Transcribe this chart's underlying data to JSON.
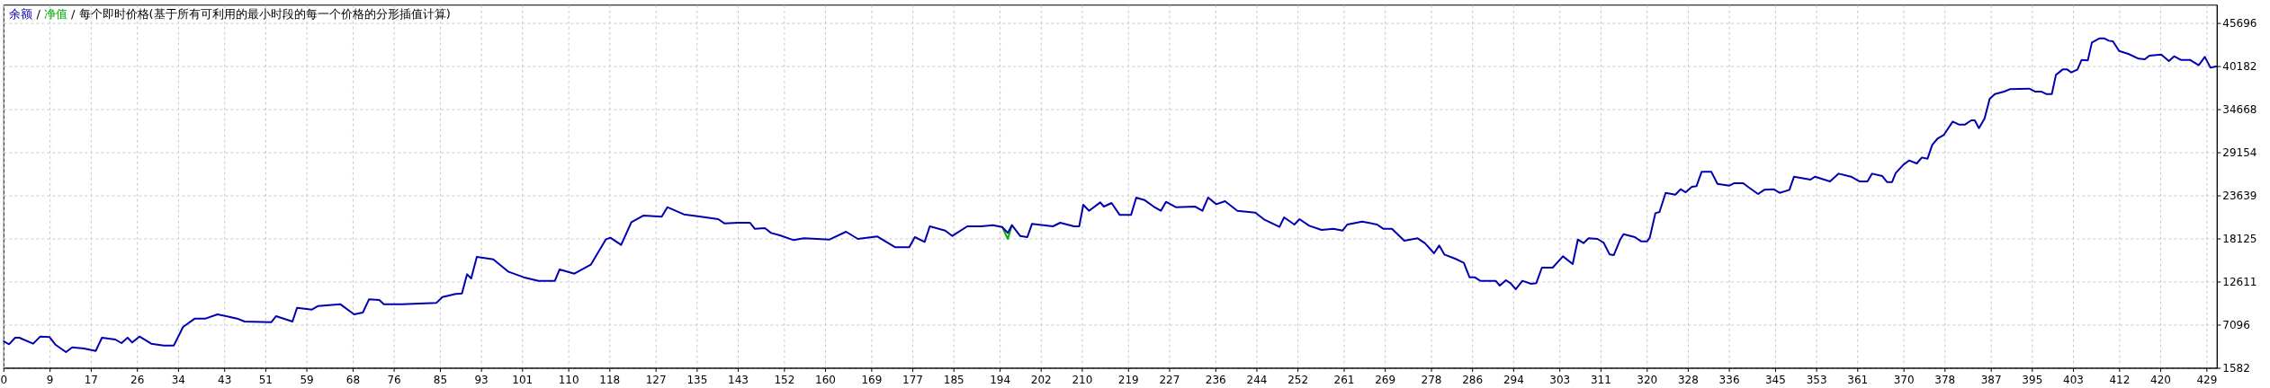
{
  "chart_data": {
    "type": "line",
    "title": "每个即时价格(基于所有可利用的最小时段的每一个价格的分形插值计算)",
    "legend": "top left",
    "grid": true,
    "line_style": "solid",
    "xlim": [
      0,
      431
    ],
    "ylim": [
      1582,
      48040
    ],
    "xticks": [
      0,
      9,
      17,
      26,
      34,
      43,
      51,
      59,
      68,
      76,
      85,
      93,
      101,
      110,
      118,
      127,
      135,
      143,
      152,
      160,
      169,
      177,
      185,
      194,
      202,
      210,
      219,
      227,
      236,
      244,
      252,
      261,
      269,
      278,
      286,
      294,
      303,
      311,
      320,
      328,
      336,
      345,
      353,
      361,
      370,
      378,
      387,
      395,
      403,
      412,
      420,
      429
    ],
    "annotations": [
      "/",
      "/"
    ],
    "yticks": [
      1582,
      7096,
      12611,
      18125,
      23639,
      29154,
      34668,
      40182,
      45696
    ],
    "series": [
      {
        "name": "净值",
        "color": "#00b000",
        "x": [
          194.4,
          195.5,
          196.3
        ],
        "values": [
          19660,
          18128,
          19889
        ]
      },
      {
        "name": "余额",
        "color": "#0000b0",
        "x": [
          0,
          1.0,
          2.2,
          3.0,
          5.7,
          7.1,
          8.9,
          10.1,
          12.1,
          13.3,
          15.6,
          17.9,
          19.1,
          21.7,
          22.9,
          24.1,
          25.0,
          26.4,
          28.7,
          31.1,
          33.1,
          34.9,
          37.2,
          39.3,
          41.6,
          45.4,
          46.9,
          52.1,
          53.0,
          56.2,
          57.1,
          60.0,
          61.2,
          65.5,
          68.2,
          69.9,
          71.1,
          73.1,
          74.0,
          77.5,
          84.2,
          85.4,
          88.0,
          89.2,
          90.2,
          91.0,
          92.1,
          95.3,
          98.3,
          101.2,
          104.1,
          107.3,
          108.2,
          111.1,
          114.3,
          117.2,
          118.1,
          120.2,
          122.2,
          124.5,
          128.1,
          129.2,
          132.4,
          135.1,
          139.1,
          140.3,
          143.0,
          145.3,
          146.2,
          148.2,
          149.4,
          151.1,
          153.8,
          155.8,
          160.8,
          164.0,
          166.3,
          170.1,
          173.6,
          176.3,
          177.4,
          179.3,
          180.3,
          183.3,
          184.7,
          187.6,
          190.3,
          192.6,
          194.4,
          195.5,
          196.3,
          197.9,
          199.3,
          200.2,
          204.3,
          205.7,
          208.4,
          209.4,
          210.2,
          211.3,
          213.5,
          214.2,
          215.7,
          217.3,
          219.5,
          220.5,
          222.1,
          223.9,
          225.3,
          226.3,
          228.2,
          232.0,
          233.4,
          234.5,
          236.1,
          237.8,
          240.2,
          243.7,
          245.5,
          248.4,
          249.3,
          251.3,
          252.3,
          254.2,
          256.6,
          258.9,
          260.7,
          261.6,
          264.5,
          267.4,
          268.6,
          270.3,
          272.7,
          275.3,
          276.7,
          278.5,
          279.5,
          280.5,
          282.6,
          284.3,
          285.4,
          286.4,
          287.5,
          290.5,
          291.3,
          292.5,
          293.4,
          294.4,
          295.7,
          297.4,
          298.4,
          299.5,
          301.6,
          303.6,
          305.5,
          306.5,
          307.6,
          308.6,
          310.3,
          311.5,
          312.7,
          313.5,
          314.7,
          315.4,
          317.6,
          318.8,
          320.0,
          320.5,
          321.6,
          322.4,
          323.6,
          325.5,
          326.5,
          327.5,
          328.7,
          329.6,
          330.6,
          332.5,
          333.7,
          336.0,
          336.9,
          338.7,
          339.8,
          341.6,
          342.8,
          344.6,
          345.8,
          347.7,
          348.6,
          351.8,
          352.7,
          355.6,
          357.3,
          359.7,
          361.4,
          362.9,
          363.8,
          365.8,
          366.7,
          367.7,
          368.4,
          369.9,
          371.0,
          372.5,
          373.5,
          374.6,
          375.5,
          376.6,
          377.8,
          379.5,
          380.7,
          381.9,
          383.1,
          383.8,
          384.6,
          385.7,
          386.7,
          387.7,
          389.5,
          390.6,
          394.4,
          395.6,
          396.8,
          397.7,
          398.8,
          399.6,
          400.9,
          401.8,
          402.6,
          403.8,
          404.6,
          405.8,
          406.6,
          408.1,
          409.0,
          409.9,
          410.7,
          411.9,
          413.7,
          415.7,
          416.9,
          417.8,
          420.1,
          421.6,
          422.6,
          423.9,
          425.7,
          427.4,
          428.6,
          429.7,
          430.8
        ],
        "values": [
          5029,
          4646,
          5489,
          5489,
          4723,
          5642,
          5565,
          4569,
          3650,
          4263,
          4110,
          3803,
          5489,
          5259,
          4799,
          5489,
          4876,
          5642,
          4723,
          4493,
          4493,
          6867,
          7940,
          7940,
          8476,
          7940,
          7557,
          7480,
          8246,
          7557,
          9319,
          9089,
          9548,
          9778,
          8476,
          8706,
          10391,
          10314,
          9778,
          9778,
          9931,
          10697,
          11080,
          11157,
          13608,
          13072,
          15830,
          15523,
          13915,
          13225,
          12766,
          12766,
          14221,
          13685,
          14834,
          18051,
          18281,
          17362,
          20273,
          21115,
          20962,
          22188,
          21268,
          21038,
          20655,
          20119,
          20196,
          20196,
          19430,
          19507,
          18894,
          18588,
          17975,
          18204,
          18051,
          19047,
          18128,
          18434,
          17055,
          17055,
          18357,
          17745,
          19737,
          19200,
          18511,
          19737,
          19737,
          19889,
          19660,
          18894,
          19889,
          18511,
          18357,
          20043,
          19737,
          20196,
          19737,
          19737,
          22494,
          21728,
          22800,
          22264,
          22724,
          21192,
          21192,
          23413,
          23107,
          22264,
          21728,
          22877,
          22188,
          22264,
          21728,
          23413,
          22570,
          22953,
          21728,
          21498,
          20579,
          19660,
          20885,
          19966,
          20655,
          19813,
          19277,
          19430,
          19200,
          19966,
          20349,
          19966,
          19430,
          19430,
          17898,
          18204,
          17591,
          16289,
          17285,
          16136,
          15600,
          15063,
          13225,
          13225,
          12766,
          12766,
          12153,
          12843,
          12460,
          11693,
          12766,
          12383,
          12460,
          14451,
          14451,
          15906,
          14910,
          18051,
          17591,
          18204,
          18128,
          17668,
          16136,
          16059,
          17975,
          18741,
          18357,
          17821,
          17821,
          18281,
          21421,
          21574,
          24025,
          23795,
          24485,
          24102,
          24791,
          24868,
          26707,
          26707,
          25175,
          24945,
          25251,
          25251,
          24715,
          23872,
          24408,
          24485,
          24025,
          24408,
          26094,
          25711,
          26094,
          25481,
          26477,
          26094,
          25481,
          25481,
          26477,
          26171,
          25405,
          25405,
          26554,
          27627,
          28162,
          27779,
          28545,
          28392,
          30154,
          30996,
          31456,
          33141,
          32758,
          32758,
          33294,
          33294,
          32298,
          33524,
          36052,
          36665,
          36971,
          37278,
          37355,
          36971,
          36971,
          36665,
          36665,
          39116,
          39805,
          39805,
          39422,
          39805,
          41031,
          40954,
          43252,
          43789,
          43789,
          43482,
          43406,
          42180,
          41797,
          41184,
          41108,
          41567,
          41720,
          40878,
          41491,
          41031,
          41031,
          40342,
          41414,
          40036,
          40190
        ]
      }
    ]
  }
}
